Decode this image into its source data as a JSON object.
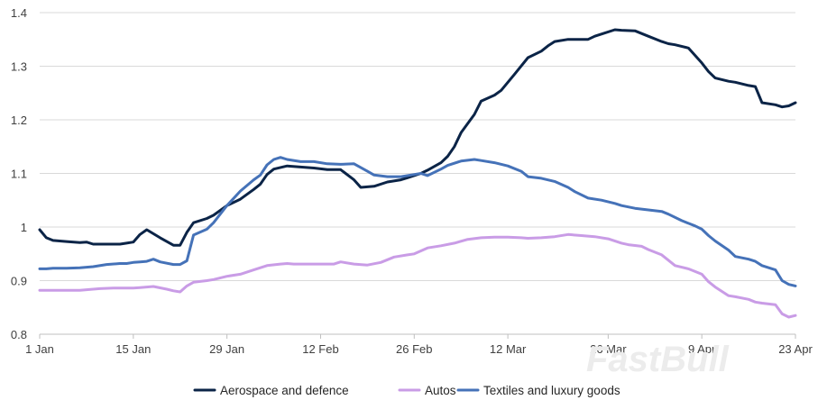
{
  "chart_data": {
    "type": "line",
    "title": "",
    "xlabel": "",
    "ylabel": "",
    "ylim": [
      0.8,
      1.4
    ],
    "yticks": [
      0.8,
      0.9,
      1,
      1.1,
      1.2,
      1.3,
      1.4
    ],
    "ytick_labels": [
      "0.8",
      "0.9",
      "1",
      "1.1",
      "1.2",
      "1.3",
      "1.4"
    ],
    "xlim": [
      0,
      113
    ],
    "xticks": [
      {
        "x": 0,
        "label": "1 Jan"
      },
      {
        "x": 14,
        "label": "15 Jan"
      },
      {
        "x": 28,
        "label": "29 Jan"
      },
      {
        "x": 42,
        "label": "12 Feb"
      },
      {
        "x": 56,
        "label": "26 Feb"
      },
      {
        "x": 70,
        "label": "12 Mar"
      },
      {
        "x": 85,
        "label": "26 Mar"
      },
      {
        "x": 99,
        "label": "9 Apr"
      },
      {
        "x": 113,
        "label": "23 Apr"
      }
    ],
    "grid": true,
    "legend_position": "bottom",
    "series": [
      {
        "name": "Aerospace and defence",
        "color": "#0b2447",
        "x": [
          0,
          1,
          2,
          4,
          6,
          7,
          8,
          10,
          12,
          13,
          14,
          15,
          16,
          18,
          20,
          21,
          22,
          23,
          25,
          26,
          28,
          30,
          32,
          33,
          34,
          35,
          37,
          39,
          41,
          43,
          45,
          47,
          48,
          50,
          52,
          54,
          55,
          57,
          58,
          60,
          61,
          62,
          63,
          65,
          66,
          68,
          69,
          71,
          73,
          75,
          76,
          77,
          79,
          80,
          82,
          83,
          84,
          86,
          87,
          89,
          91,
          93,
          94,
          95,
          97,
          99,
          100,
          101,
          103,
          104,
          106,
          107,
          108,
          110,
          111,
          112,
          113
        ],
        "values": [
          0.995,
          0.98,
          0.975,
          0.973,
          0.971,
          0.972,
          0.968,
          0.968,
          0.968,
          0.97,
          0.972,
          0.986,
          0.995,
          0.98,
          0.966,
          0.966,
          0.99,
          1.008,
          1.016,
          1.022,
          1.04,
          1.052,
          1.07,
          1.08,
          1.098,
          1.108,
          1.114,
          1.112,
          1.11,
          1.107,
          1.107,
          1.088,
          1.074,
          1.076,
          1.084,
          1.088,
          1.092,
          1.1,
          1.106,
          1.12,
          1.132,
          1.15,
          1.176,
          1.21,
          1.235,
          1.246,
          1.255,
          1.285,
          1.316,
          1.328,
          1.338,
          1.346,
          1.35,
          1.35,
          1.35,
          1.356,
          1.36,
          1.368,
          1.367,
          1.366,
          1.356,
          1.346,
          1.342,
          1.34,
          1.334,
          1.306,
          1.29,
          1.278,
          1.272,
          1.27,
          1.264,
          1.262,
          1.232,
          1.228,
          1.224,
          1.226,
          1.232
        ]
      },
      {
        "name": "Autos",
        "color": "#c99ce6",
        "x": [
          0,
          2,
          4,
          6,
          7,
          8,
          9,
          11,
          13,
          14,
          15,
          16,
          17,
          19,
          20,
          21,
          22,
          23,
          25,
          26,
          28,
          30,
          32,
          34,
          36,
          37,
          38,
          40,
          42,
          44,
          45,
          47,
          49,
          51,
          53,
          55,
          56,
          58,
          60,
          62,
          64,
          66,
          68,
          70,
          72,
          73,
          75,
          77,
          79,
          81,
          83,
          85,
          87,
          88,
          90,
          91,
          93,
          95,
          97,
          98,
          99,
          100,
          101,
          103,
          104,
          106,
          107,
          108,
          110,
          111,
          112,
          113
        ],
        "values": [
          0.882,
          0.882,
          0.882,
          0.882,
          0.883,
          0.884,
          0.885,
          0.886,
          0.886,
          0.886,
          0.887,
          0.888,
          0.889,
          0.884,
          0.881,
          0.879,
          0.89,
          0.897,
          0.9,
          0.902,
          0.908,
          0.912,
          0.92,
          0.928,
          0.931,
          0.932,
          0.931,
          0.931,
          0.931,
          0.931,
          0.935,
          0.931,
          0.929,
          0.934,
          0.944,
          0.948,
          0.95,
          0.961,
          0.965,
          0.97,
          0.977,
          0.98,
          0.981,
          0.981,
          0.98,
          0.979,
          0.98,
          0.982,
          0.986,
          0.984,
          0.982,
          0.978,
          0.97,
          0.967,
          0.964,
          0.958,
          0.948,
          0.928,
          0.922,
          0.917,
          0.912,
          0.898,
          0.888,
          0.872,
          0.87,
          0.865,
          0.86,
          0.858,
          0.855,
          0.838,
          0.832,
          0.835
        ]
      },
      {
        "name": "Textiles and luxury goods",
        "color": "#4572b8",
        "x": [
          0,
          1,
          2,
          4,
          6,
          8,
          10,
          12,
          13,
          14,
          15,
          16,
          17,
          18,
          20,
          21,
          22,
          23,
          25,
          26,
          28,
          30,
          32,
          33,
          34,
          35,
          36,
          37,
          39,
          41,
          43,
          45,
          47,
          49,
          50,
          52,
          54,
          56,
          57,
          58,
          60,
          61,
          63,
          65,
          66,
          68,
          70,
          72,
          73,
          75,
          77,
          79,
          80,
          82,
          84,
          86,
          87,
          89,
          91,
          93,
          94,
          96,
          98,
          99,
          100,
          101,
          103,
          104,
          106,
          107,
          108,
          110,
          111,
          112,
          113
        ],
        "values": [
          0.922,
          0.922,
          0.923,
          0.923,
          0.924,
          0.926,
          0.93,
          0.932,
          0.932,
          0.934,
          0.935,
          0.936,
          0.94,
          0.935,
          0.93,
          0.93,
          0.937,
          0.985,
          0.996,
          1.008,
          1.04,
          1.067,
          1.088,
          1.097,
          1.116,
          1.126,
          1.13,
          1.126,
          1.122,
          1.122,
          1.118,
          1.117,
          1.118,
          1.104,
          1.097,
          1.094,
          1.094,
          1.098,
          1.1,
          1.096,
          1.108,
          1.115,
          1.123,
          1.126,
          1.124,
          1.12,
          1.114,
          1.104,
          1.094,
          1.091,
          1.085,
          1.074,
          1.066,
          1.054,
          1.05,
          1.044,
          1.04,
          1.035,
          1.032,
          1.029,
          1.024,
          1.012,
          1.002,
          0.996,
          0.984,
          0.974,
          0.957,
          0.945,
          0.94,
          0.936,
          0.928,
          0.92,
          0.9,
          0.893,
          0.89
        ]
      }
    ]
  },
  "watermark": "FastBull"
}
